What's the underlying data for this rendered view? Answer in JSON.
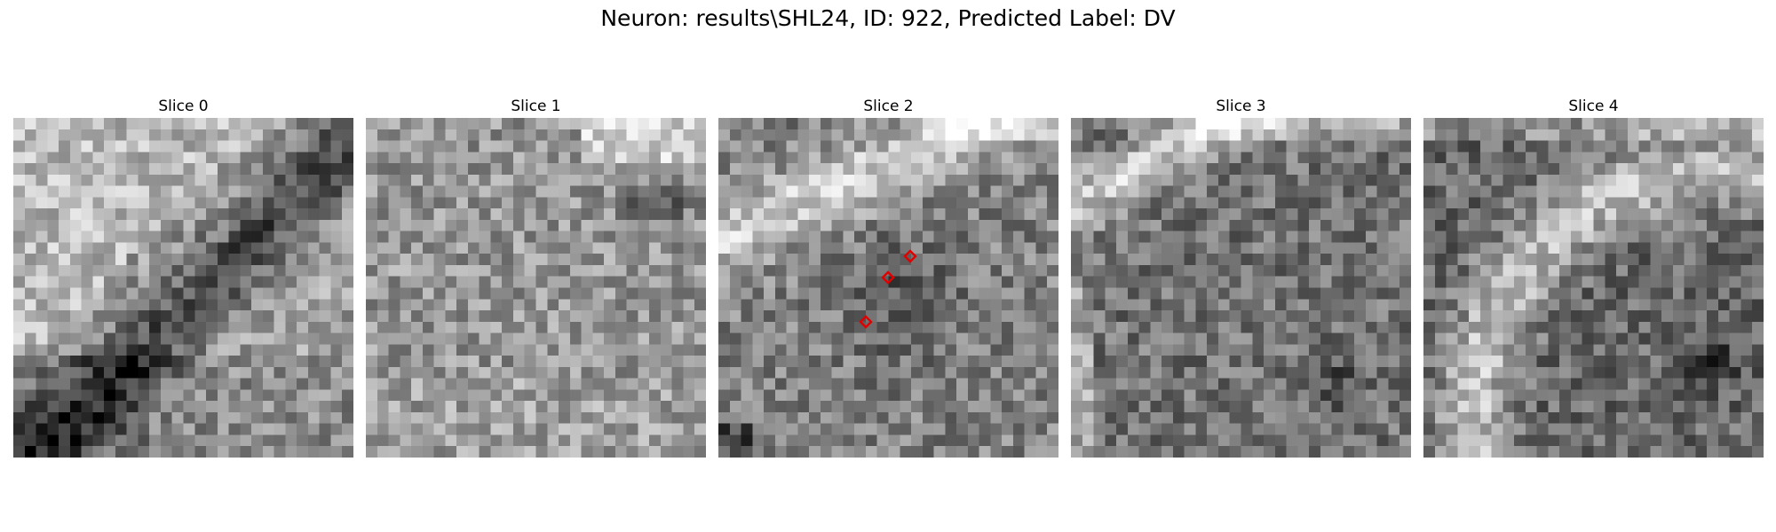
{
  "figure": {
    "title": "Neuron: results\\SHL24, ID: 922, Predicted Label: DV"
  },
  "panels": [
    {
      "title": "Slice 0",
      "image_description": "grayscale voxel grid, dark diagonal band from lower-left to upper-right"
    },
    {
      "title": "Slice 1",
      "image_description": "grayscale voxel grid, dark patch at top-right"
    },
    {
      "title": "Slice 2",
      "image_description": "grayscale voxel grid, light diagonal band top-left, three red diamond markers near center"
    },
    {
      "title": "Slice 3",
      "image_description": "grayscale voxel grid, light band at top-left edge"
    },
    {
      "title": "Slice 4",
      "image_description": "grayscale voxel grid, light curved band at left and top"
    }
  ],
  "markers": {
    "color": "#e00000",
    "shape": "diamond"
  },
  "colormap": "gray"
}
